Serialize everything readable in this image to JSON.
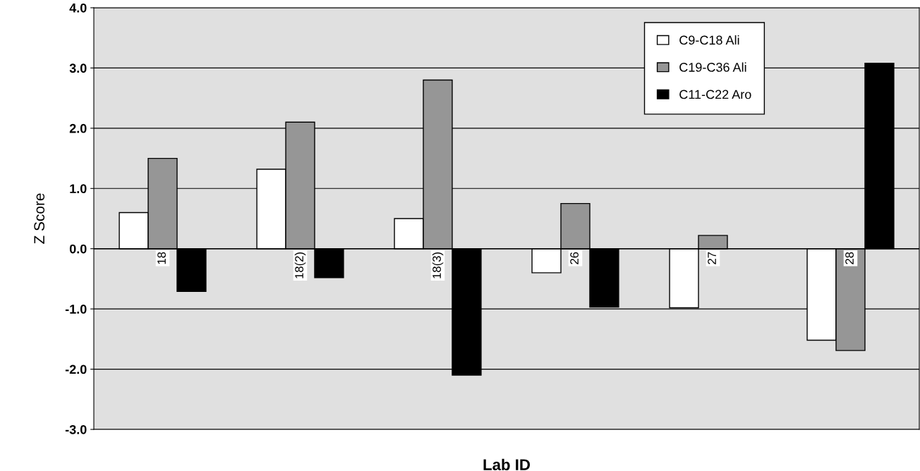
{
  "chart_data": {
    "type": "bar",
    "xlabel": "Lab ID",
    "ylabel": "Z Score",
    "categories": [
      "18",
      "18(2)",
      "18(3)",
      "26",
      "27",
      "28"
    ],
    "series": [
      {
        "name": "C9-C18 Ali",
        "color": "#ffffff",
        "values": [
          0.6,
          1.32,
          0.5,
          -0.4,
          -0.98,
          -1.52
        ]
      },
      {
        "name": "C19-C36 Ali",
        "color": "#969696",
        "values": [
          1.5,
          2.1,
          2.8,
          0.75,
          0.22,
          -1.69
        ]
      },
      {
        "name": "C11-C22 Aro",
        "color": "#000000",
        "values": [
          -0.71,
          -0.48,
          -2.1,
          -0.97,
          null,
          3.08
        ]
      }
    ],
    "ylim": [
      -3,
      4
    ],
    "yticks": [
      {
        "value": -3,
        "label": "-3.0"
      },
      {
        "value": -2,
        "label": "-2.0"
      },
      {
        "value": -1,
        "label": "-1.0"
      },
      {
        "value": 0,
        "label": "0.0"
      },
      {
        "value": 1,
        "label": "1.0"
      },
      {
        "value": 2,
        "label": "2.0"
      },
      {
        "value": 3,
        "label": "3.0"
      },
      {
        "value": 4,
        "label": "4.0"
      }
    ],
    "grid": "y",
    "legend": "top right"
  }
}
